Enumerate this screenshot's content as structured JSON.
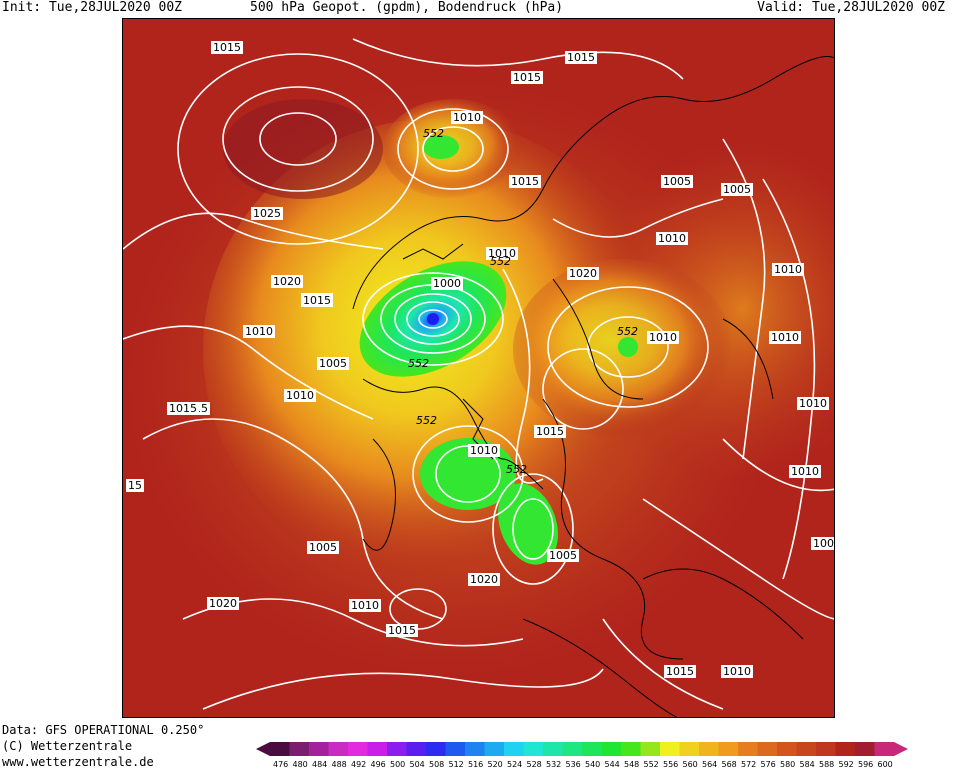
{
  "header": {
    "init": "Init: Tue,28JUL2020 00Z",
    "title": "500 hPa Geopot. (gpdm), Bodendruck (hPa)",
    "valid": "Valid: Tue,28JUL2020 00Z"
  },
  "footer": {
    "data": "Data: GFS OPERATIONAL 0.250°",
    "copyright": "(C) Wetterzentrale",
    "url": "www.wetterzentrale.de"
  },
  "map": {
    "pressure_labels": [
      {
        "text": "1015"
      },
      {
        "text": "1015"
      },
      {
        "text": "1015"
      },
      {
        "text": "1010"
      },
      {
        "text": "1015"
      },
      {
        "text": "1025"
      },
      {
        "text": "1005"
      },
      {
        "text": "1005"
      },
      {
        "text": "1010"
      },
      {
        "text": "1010"
      },
      {
        "text": "1010"
      },
      {
        "text": "1015"
      },
      {
        "text": "1020"
      },
      {
        "text": "1020"
      },
      {
        "text": "1015"
      },
      {
        "text": "1000"
      },
      {
        "text": "1010"
      },
      {
        "text": "1010"
      },
      {
        "text": "1010"
      },
      {
        "text": "1005"
      },
      {
        "text": "1010"
      },
      {
        "text": "1015"
      },
      {
        "text": "1010"
      },
      {
        "text": "1015"
      },
      {
        "text": "1010"
      },
      {
        "text": "1010"
      },
      {
        "text": "1010"
      },
      {
        "text": "1015"
      },
      {
        "text": "15"
      },
      {
        "text": "1005"
      },
      {
        "text": "1005"
      },
      {
        "text": "1020"
      },
      {
        "text": "1020"
      },
      {
        "text": "1010"
      },
      {
        "text": "1015"
      },
      {
        "text": "1015"
      },
      {
        "text": "1010"
      },
      {
        "text": "1005"
      }
    ],
    "geopot_labels": [
      "552",
      "552",
      "552",
      "552",
      "552",
      "552"
    ]
  },
  "colorbar": {
    "values": [
      "476",
      "480",
      "484",
      "488",
      "492",
      "496",
      "500",
      "504",
      "508",
      "512",
      "516",
      "520",
      "524",
      "528",
      "532",
      "536",
      "540",
      "544",
      "548",
      "552",
      "556",
      "560",
      "564",
      "568",
      "572",
      "576",
      "580",
      "584",
      "588",
      "592",
      "596",
      "600"
    ],
    "colors": [
      "#4b0d3f",
      "#7a1e6e",
      "#a3219a",
      "#c82cc2",
      "#e22be0",
      "#c81ee8",
      "#8a1ef0",
      "#5a1ef0",
      "#2a2cf0",
      "#1e5af0",
      "#1e82f0",
      "#1eaaf0",
      "#1ed2f0",
      "#1ee6d2",
      "#1ee6aa",
      "#1ee682",
      "#1ee65a",
      "#1ee632",
      "#46e61e",
      "#96e61e",
      "#f0f01e",
      "#f0d21e",
      "#f0b41e",
      "#f09a1e",
      "#e67d1e",
      "#dc6a1e",
      "#d2551e",
      "#c8461e",
      "#be371e",
      "#b0241c",
      "#a01e30",
      "#c8287a"
    ]
  },
  "colors": {
    "background_geopot": "#b0241c",
    "isobar": "#ffffff",
    "coastline": "#000000"
  }
}
